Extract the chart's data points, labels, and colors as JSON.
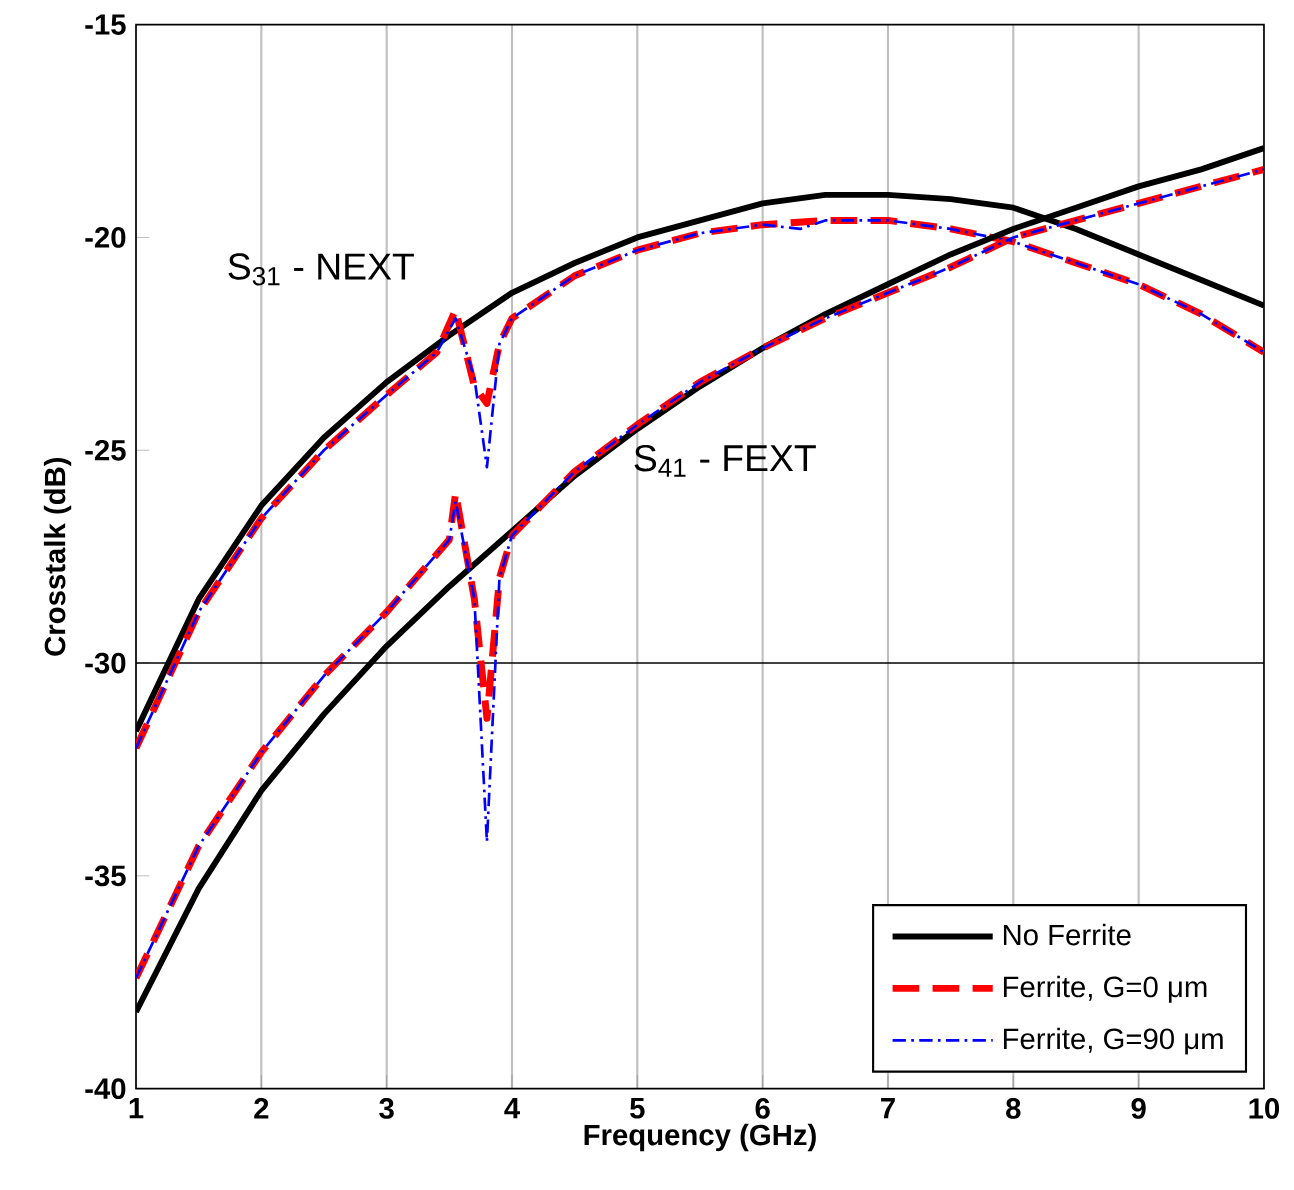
{
  "chart_data": {
    "type": "line",
    "xlabel": "Frequency (GHz)",
    "ylabel": "Crosstalk (dB)",
    "xlim": [
      1,
      10
    ],
    "ylim": [
      -40,
      -15
    ],
    "xticks": [
      1,
      2,
      3,
      4,
      5,
      6,
      7,
      8,
      9,
      10
    ],
    "yticks": [
      -40,
      -35,
      -30,
      -25,
      -20,
      -15
    ],
    "grid": "x",
    "legend": "bottom right",
    "ref_lines": [
      {
        "axis": "y",
        "value": -30,
        "color": "#000000"
      }
    ],
    "annotations": [
      "S$_{31}$ - NEXT",
      "S$_{41}$ - FEXT"
    ],
    "series": [
      {
        "name": "No Ferrite",
        "color": "#000000",
        "line_style": "solid",
        "x": [
          1,
          1.5,
          2,
          2.5,
          3,
          3.5,
          4,
          4.5,
          5,
          5.5,
          6,
          6.5,
          7,
          7.5,
          8,
          8.5,
          9,
          9.5,
          10
        ],
        "values": [
          -31.6,
          -28.5,
          -26.3,
          -24.7,
          -23.4,
          -22.3,
          -21.3,
          -20.6,
          -20.0,
          -19.6,
          -19.2,
          -19.0,
          -19.0,
          -19.1,
          -19.3,
          -19.8,
          -20.4,
          -21.0,
          -21.6
        ]
      },
      {
        "name": "Ferrite, G=0 μm",
        "color": "#ff0000",
        "line_style": "dashed",
        "x": [
          1,
          1.5,
          2,
          2.5,
          3,
          3.4,
          3.55,
          3.7,
          3.8,
          3.9,
          4,
          4.5,
          5,
          5.5,
          6,
          6.5,
          7,
          7.5,
          8,
          8.5,
          9,
          9.5,
          10
        ],
        "values": [
          -32.0,
          -28.8,
          -26.6,
          -25.0,
          -23.7,
          -22.7,
          -21.7,
          -23.5,
          -23.9,
          -22.5,
          -21.9,
          -20.9,
          -20.3,
          -19.9,
          -19.7,
          -19.6,
          -19.6,
          -19.8,
          -20.1,
          -20.6,
          -21.1,
          -21.8,
          -22.7
        ]
      },
      {
        "name": "Ferrite, G=90 μm",
        "color": "#0000ff",
        "line_style": "dashdot",
        "x": [
          1,
          1.5,
          2,
          2.5,
          3,
          3.4,
          3.55,
          3.7,
          3.8,
          3.9,
          4,
          4.5,
          5,
          5.5,
          6,
          6.3,
          6.5,
          7,
          7.5,
          8,
          8.5,
          9,
          9.5,
          10
        ],
        "values": [
          -32.0,
          -28.8,
          -26.6,
          -25.0,
          -23.7,
          -22.7,
          -21.9,
          -23.3,
          -25.4,
          -22.5,
          -21.9,
          -20.9,
          -20.3,
          -19.9,
          -19.7,
          -19.8,
          -19.6,
          -19.6,
          -19.8,
          -20.1,
          -20.6,
          -21.1,
          -21.8,
          -22.7
        ]
      },
      {
        "color": "#000000",
        "line_style": "solid",
        "x": [
          1,
          1.5,
          2,
          2.5,
          3,
          3.5,
          4,
          4.5,
          5,
          5.5,
          6,
          6.5,
          7,
          7.5,
          8,
          8.5,
          9,
          9.5,
          10
        ],
        "values": [
          -38.2,
          -35.3,
          -33.0,
          -31.2,
          -29.6,
          -28.2,
          -26.9,
          -25.6,
          -24.5,
          -23.5,
          -22.6,
          -21.8,
          -21.1,
          -20.4,
          -19.8,
          -19.3,
          -18.8,
          -18.4,
          -17.9
        ]
      },
      {
        "color": "#ff0000",
        "line_style": "dashed",
        "x": [
          1,
          1.5,
          2,
          2.5,
          3,
          3.5,
          3.55,
          3.7,
          3.8,
          3.9,
          4,
          4.5,
          5,
          5.5,
          6,
          6.5,
          7,
          7.5,
          8,
          8.5,
          9,
          9.5,
          10
        ],
        "values": [
          -37.4,
          -34.3,
          -32.1,
          -30.3,
          -28.8,
          -27.1,
          -26.0,
          -28.5,
          -31.3,
          -28.0,
          -27.0,
          -25.5,
          -24.4,
          -23.4,
          -22.6,
          -21.9,
          -21.3,
          -20.7,
          -20.0,
          -19.6,
          -19.2,
          -18.8,
          -18.4
        ]
      },
      {
        "color": "#0000ff",
        "line_style": "dashdot",
        "x": [
          1,
          1.5,
          2,
          2.5,
          3,
          3.5,
          3.55,
          3.7,
          3.8,
          3.9,
          4,
          4.5,
          5,
          5.5,
          6,
          6.5,
          7,
          7.5,
          8,
          8.5,
          9,
          9.5,
          10
        ],
        "values": [
          -37.4,
          -34.3,
          -32.1,
          -30.3,
          -28.8,
          -27.1,
          -26.2,
          -28.5,
          -34.2,
          -28.0,
          -27.0,
          -25.5,
          -24.4,
          -23.4,
          -22.6,
          -21.9,
          -21.3,
          -20.7,
          -20.0,
          -19.6,
          -19.2,
          -18.8,
          -18.4
        ]
      }
    ]
  }
}
